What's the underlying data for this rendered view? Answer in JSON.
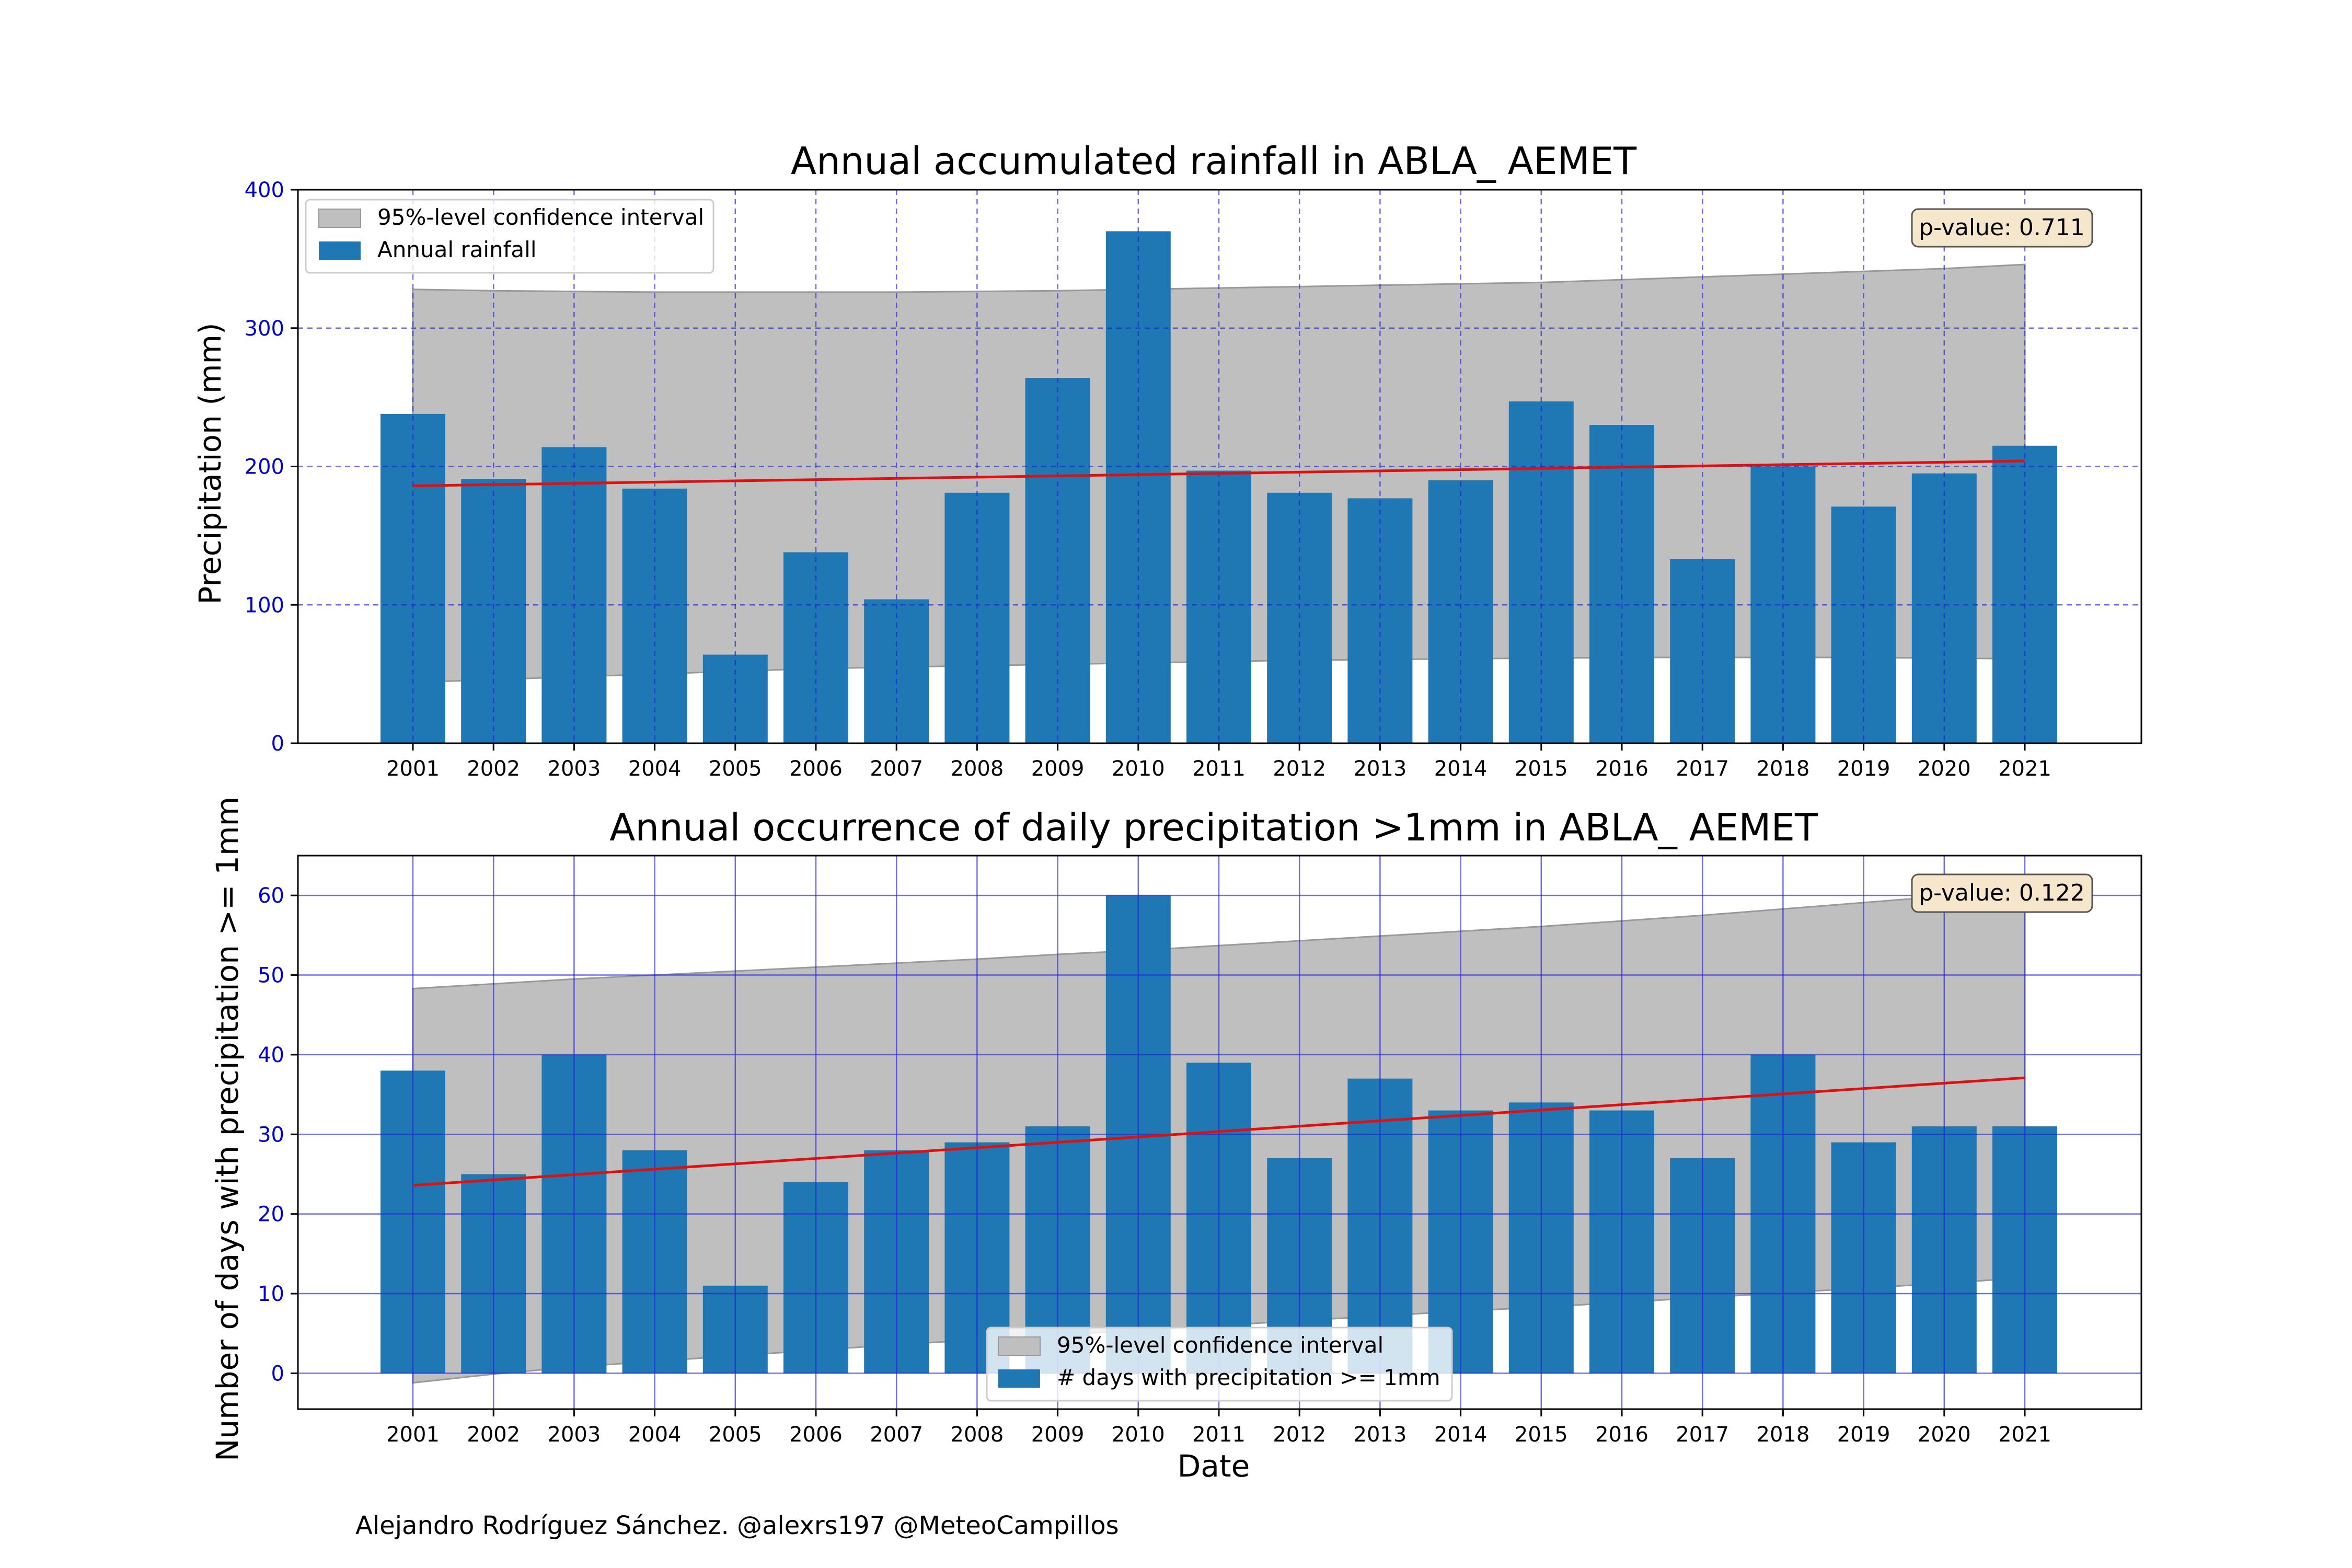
{
  "credit": "Alejandro Rodríguez Sánchez. @alexrs197 @MeteoCampillos",
  "colors": {
    "bar": "#1f77b4",
    "band": "#bfbfbf",
    "trend": "#dd1111",
    "grid": "#2222dd",
    "tick_label": "#0000cc",
    "pvalue_box": "#f5e6cc"
  },
  "chart_data": [
    {
      "type": "bar",
      "title": "Annual accumulated rainfall in ABLA_ AEMET",
      "xlabel": "",
      "ylabel": "Precipitation (mm)",
      "ylim": [
        0,
        400
      ],
      "yticks": [
        0,
        100,
        200,
        300,
        400
      ],
      "grid": "dashed",
      "legend_position": "top-left",
      "pvalue_label": "p-value: 0.711",
      "categories": [
        "2001",
        "2002",
        "2003",
        "2004",
        "2005",
        "2006",
        "2007",
        "2008",
        "2009",
        "2010",
        "2011",
        "2012",
        "2013",
        "2014",
        "2015",
        "2016",
        "2017",
        "2018",
        "2019",
        "2020",
        "2021"
      ],
      "series": [
        {
          "name": "Annual rainfall",
          "values": [
            238,
            191,
            214,
            184,
            64,
            138,
            104,
            181,
            264,
            370,
            197,
            181,
            177,
            190,
            247,
            230,
            133,
            200,
            171,
            195,
            215
          ]
        }
      ],
      "confidence_band": {
        "name": "95%-level confidence interval",
        "upper": [
          328,
          327,
          326.5,
          326,
          326,
          326,
          326,
          326.5,
          327,
          328,
          329,
          330,
          331,
          332,
          333,
          335,
          337,
          339,
          341,
          343,
          346
        ],
        "lower": [
          44,
          46,
          48,
          50,
          52,
          54,
          55,
          56,
          57,
          58,
          59,
          60,
          60.5,
          61,
          61.5,
          62,
          62,
          62,
          62,
          61.5,
          61
        ]
      },
      "trend": {
        "start": 186,
        "end": 204
      }
    },
    {
      "type": "bar",
      "title": "Annual occurrence of daily precipitation >1mm in ABLA_ AEMET",
      "xlabel": "Date",
      "ylabel": "Number of days with precipitation >= 1mm",
      "ylim": [
        -4.5,
        65
      ],
      "yticks": [
        0,
        10,
        20,
        30,
        40,
        50,
        60
      ],
      "grid": "solid",
      "legend_position": "bottom-center",
      "pvalue_label": "p-value: 0.122",
      "categories": [
        "2001",
        "2002",
        "2003",
        "2004",
        "2005",
        "2006",
        "2007",
        "2008",
        "2009",
        "2010",
        "2011",
        "2012",
        "2013",
        "2014",
        "2015",
        "2016",
        "2017",
        "2018",
        "2019",
        "2020",
        "2021"
      ],
      "series": [
        {
          "name": "# days with precipitation >= 1mm",
          "values": [
            38,
            25,
            40,
            28,
            11,
            24,
            28,
            29,
            31,
            60,
            39,
            27,
            37,
            33,
            34,
            33,
            27,
            40,
            29,
            31,
            31
          ]
        }
      ],
      "confidence_band": {
        "name": "95%-level confidence interval",
        "upper": [
          48.3,
          48.9,
          49.5,
          50.0,
          50.5,
          51.0,
          51.5,
          52.0,
          52.6,
          53.1,
          53.7,
          54.3,
          54.9,
          55.5,
          56.1,
          56.8,
          57.5,
          58.3,
          59.1,
          59.9,
          60.7
        ],
        "lower": [
          -1.2,
          -0.1,
          0.8,
          1.5,
          2.2,
          2.9,
          3.6,
          4.2,
          4.8,
          5.4,
          6.0,
          6.6,
          7.2,
          7.8,
          8.3,
          8.9,
          9.5,
          10.1,
          10.7,
          11.3,
          12.0
        ]
      },
      "trend": {
        "start": 23.6,
        "end": 37.1
      }
    }
  ]
}
